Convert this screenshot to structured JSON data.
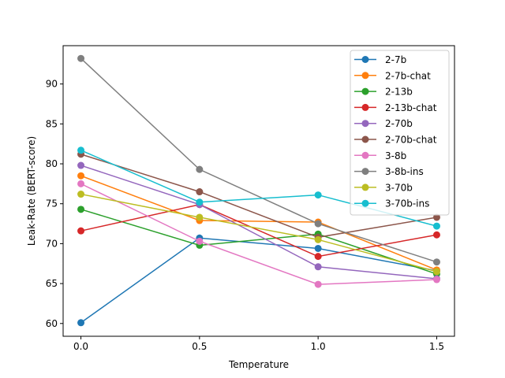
{
  "chart_data": {
    "type": "line",
    "title": "",
    "xlabel": "Temperature",
    "ylabel": "Leak-Rate (BERT-score)",
    "x": [
      0.0,
      0.5,
      1.0,
      1.5
    ],
    "xticks": [
      0.0,
      0.5,
      1.0,
      1.5
    ],
    "xtick_labels": [
      "0.0",
      "0.5",
      "1.0",
      "1.5"
    ],
    "yticks": [
      60,
      65,
      70,
      75,
      80,
      85,
      90
    ],
    "ytick_labels": [
      "60",
      "65",
      "70",
      "75",
      "80",
      "85",
      "90"
    ],
    "xlim": [
      -0.075,
      1.575
    ],
    "ylim": [
      58.4,
      94.8
    ],
    "grid": false,
    "legend_position": "top-right",
    "series": [
      {
        "name": "2-7b",
        "color": "#1f77b4",
        "values": [
          60.1,
          70.7,
          69.4,
          66.6
        ]
      },
      {
        "name": "2-7b-chat",
        "color": "#ff7f0e",
        "values": [
          78.5,
          72.9,
          72.7,
          66.7
        ]
      },
      {
        "name": "2-13b",
        "color": "#2ca02c",
        "values": [
          74.3,
          69.8,
          71.2,
          66.2
        ]
      },
      {
        "name": "2-13b-chat",
        "color": "#d62728",
        "values": [
          71.6,
          74.9,
          68.4,
          71.1
        ]
      },
      {
        "name": "2-70b",
        "color": "#9467bd",
        "values": [
          79.8,
          74.9,
          67.1,
          65.6
        ]
      },
      {
        "name": "2-70b-chat",
        "color": "#8c564b",
        "values": [
          81.2,
          76.5,
          70.8,
          73.3
        ]
      },
      {
        "name": "3-8b",
        "color": "#e377c2",
        "values": [
          77.5,
          70.3,
          64.9,
          65.5
        ]
      },
      {
        "name": "3-8b-ins",
        "color": "#7f7f7f",
        "values": [
          93.2,
          79.3,
          72.5,
          67.7
        ]
      },
      {
        "name": "3-70b",
        "color": "#bcbd22",
        "values": [
          76.2,
          73.3,
          70.5,
          66.5
        ]
      },
      {
        "name": "3-70b-ins",
        "color": "#17becf",
        "values": [
          81.7,
          75.2,
          76.1,
          72.2
        ]
      }
    ]
  }
}
